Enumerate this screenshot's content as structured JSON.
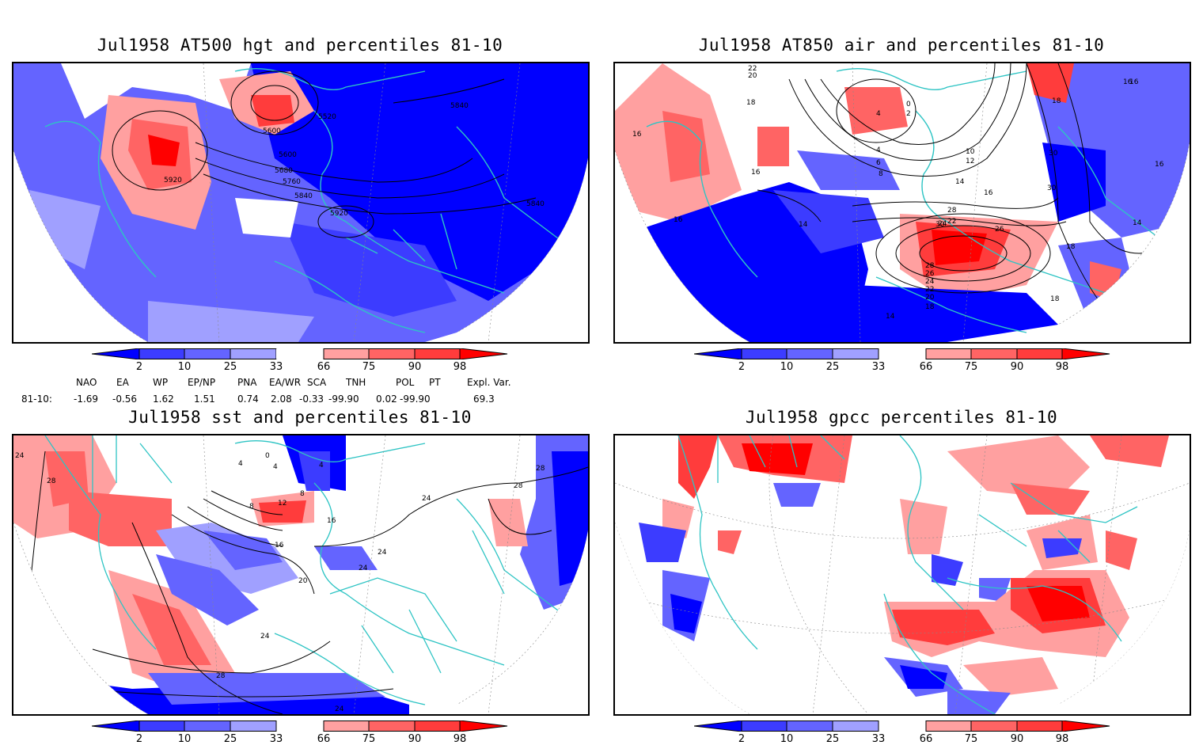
{
  "panels": [
    {
      "id": "p1",
      "title": "Jul1958 AT500 hgt and percentiles 81-10",
      "contour_labels": [
        "5600",
        "5520",
        "5840",
        "5600",
        "5680",
        "5760",
        "5840",
        "5920",
        "5920",
        "5840"
      ]
    },
    {
      "id": "p2",
      "title": "Jul1958 AT850 air and percentiles 81-10",
      "contour_labels": [
        "22",
        "20",
        "18",
        "16",
        "16",
        "16",
        "14",
        "4",
        "0",
        "2",
        "4",
        "6",
        "8",
        "10",
        "12",
        "14",
        "16",
        "18",
        "16",
        "30",
        "30",
        "28",
        "22",
        "24",
        "26",
        "30",
        "28",
        "26",
        "24",
        "22",
        "20",
        "18",
        "18",
        "14",
        "18",
        "16",
        "14",
        "16"
      ]
    },
    {
      "id": "p3",
      "title": "Jul1958 sst and percentiles 81-10",
      "contour_labels": [
        "24",
        "28",
        "4",
        "0",
        "4",
        "8",
        "12",
        "8",
        "16",
        "16",
        "20",
        "24",
        "24",
        "24",
        "28",
        "28",
        "24",
        "28",
        "4"
      ]
    },
    {
      "id": "p4",
      "title": "Jul1958 gpcc percentiles 81-10",
      "contour_labels": []
    }
  ],
  "colorbar": {
    "ticks": [
      "2",
      "10",
      "25",
      "33",
      "66",
      "75",
      "90",
      "98"
    ],
    "colors": [
      "#0000ff",
      "#3c3cff",
      "#6464ff",
      "#a0a0ff",
      "#ffffff",
      "#ffa0a0",
      "#ff6464",
      "#ff3c3c",
      "#ff0000"
    ]
  },
  "indices": {
    "row_label": "81-10:",
    "headers": [
      "NAO",
      "EA",
      "WP",
      "EP/NP",
      "PNA",
      "EA/WR",
      "SCA",
      "TNH",
      "POL",
      "PT",
      "Expl. Var."
    ],
    "values": [
      "-1.69",
      "-0.56",
      "1.62",
      "1.51",
      "0.74",
      "2.08",
      "-0.33",
      "-99.90",
      "0.02",
      "-99.90",
      "69.3"
    ]
  },
  "colors": {
    "coast": "#2ec4c4",
    "contour": "#000000",
    "frame": "#000000"
  }
}
